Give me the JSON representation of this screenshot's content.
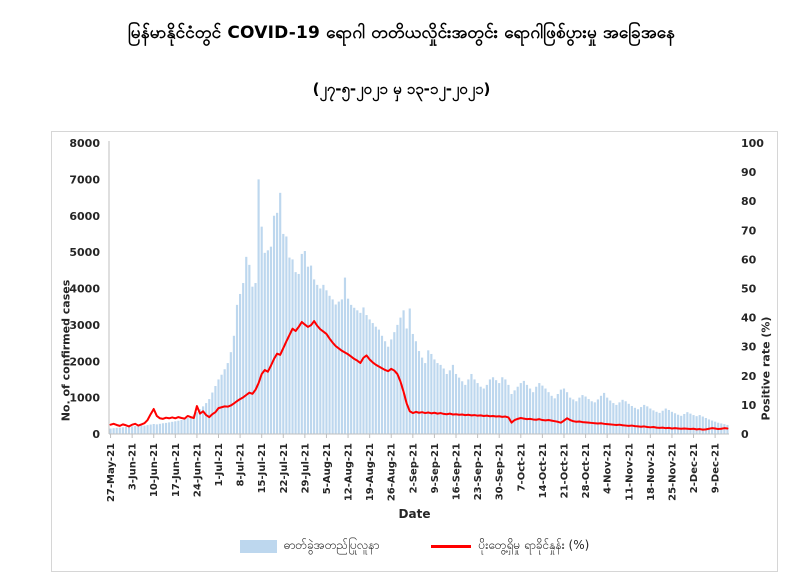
{
  "header": {
    "title": "မြန်မာနိုင်ငံတွင် COVID-19 ရောဂါ တတိယလှိုင်းအတွင်း ရောဂါဖြစ်ပွားမှု အခြေအနေ",
    "subtitle": "(၂၇-၅-၂၀၂၁ မှ ၁၃-၁၂-၂၀၂၁)"
  },
  "chart_data": {
    "type": "bar+line combo (daily bars, weekly x ticks)",
    "title": "မြန်မာနိုင်ငံတွင် COVID-19 ရောဂါ တတိယလှိုင်းအတွင်း ရောဂါဖြစ်ပွားမှု အခြေအနေ",
    "subtitle": "(၂၇-၅-၂၀၂၁ မှ ၁၃-၁၂-၂၀၂၁)",
    "xlabel": "Date",
    "ylabel_left": "No. of confirmed cases",
    "ylabel_right": "Positive rate (%)",
    "date_range": {
      "start": "27-May-21",
      "end": "13-Dec-21",
      "days": 201
    },
    "x_tick_interval_days": 7,
    "x_tick_labels": [
      "27-May-21",
      "3-Jun-21",
      "10-Jun-21",
      "17-Jun-21",
      "24-Jun-21",
      "1-Jul-21",
      "8-Jul-21",
      "15-Jul-21",
      "22-Jul-21",
      "29-Jul-21",
      "5-Aug-21",
      "12-Aug-21",
      "19-Aug-21",
      "26-Aug-21",
      "2-Sep-21",
      "9-Sep-21",
      "16-Sep-21",
      "23-Sep-21",
      "30-Sep-21",
      "7-Oct-21",
      "14-Oct-21",
      "21-Oct-21",
      "28-Oct-21",
      "4-Nov-21",
      "11-Nov-21",
      "18-Nov-21",
      "25-Nov-21",
      "2-Dec-21",
      "9-Dec-21"
    ],
    "left_axis": {
      "min": 0,
      "max": 8000,
      "ticks": [
        0,
        1000,
        2000,
        3000,
        4000,
        5000,
        6000,
        7000,
        8000
      ]
    },
    "right_axis": {
      "min": 0,
      "max": 100,
      "ticks": [
        0,
        10,
        20,
        30,
        40,
        50,
        60,
        70,
        80,
        90,
        100
      ]
    },
    "grid": false,
    "legend_position": "bottom",
    "series": [
      {
        "name": "ဓာတ်ခွဲအတည်ပြုလူနာ",
        "axis": "left",
        "type": "bar",
        "color": "#bdd7ee",
        "values": [
          150,
          160,
          170,
          175,
          185,
          195,
          205,
          210,
          220,
          230,
          235,
          230,
          245,
          260,
          275,
          265,
          280,
          295,
          305,
          320,
          335,
          350,
          365,
          385,
          410,
          440,
          480,
          530,
          600,
          680,
          760,
          850,
          960,
          1140,
          1320,
          1500,
          1630,
          1780,
          1950,
          2250,
          2700,
          3550,
          3850,
          4150,
          4870,
          4650,
          4050,
          4150,
          7000,
          5700,
          4980,
          5050,
          5150,
          6000,
          6080,
          6630,
          5500,
          5430,
          4850,
          4800,
          4450,
          4400,
          4950,
          5030,
          4600,
          4630,
          4250,
          4100,
          4000,
          4100,
          3950,
          3800,
          3700,
          3560,
          3640,
          3700,
          4300,
          3720,
          3550,
          3470,
          3400,
          3330,
          3480,
          3270,
          3150,
          3050,
          2950,
          2870,
          2700,
          2550,
          2400,
          2600,
          2800,
          3000,
          3200,
          3400,
          2900,
          3450,
          2750,
          2550,
          2280,
          2100,
          1950,
          2300,
          2200,
          2050,
          1950,
          1900,
          1800,
          1650,
          1750,
          1900,
          1650,
          1550,
          1450,
          1350,
          1500,
          1650,
          1500,
          1400,
          1300,
          1250,
          1350,
          1500,
          1560,
          1480,
          1400,
          1560,
          1500,
          1350,
          1100,
          1200,
          1300,
          1400,
          1460,
          1350,
          1250,
          1150,
          1300,
          1400,
          1330,
          1250,
          1150,
          1050,
          980,
          1100,
          1220,
          1250,
          1150,
          1000,
          950,
          900,
          1000,
          1070,
          1030,
          960,
          900,
          870,
          950,
          1050,
          1130,
          1000,
          920,
          850,
          800,
          870,
          940,
          900,
          830,
          770,
          720,
          680,
          740,
          800,
          760,
          700,
          650,
          610,
          580,
          640,
          700,
          660,
          610,
          570,
          530,
          500,
          550,
          600,
          560,
          520,
          490,
          520,
          480,
          440,
          400,
          370,
          340,
          310,
          290,
          270,
          250
        ]
      },
      {
        "name": "ပိုးတွေ့ရှိမှု ရာခိုင်နှုန်း (%)",
        "axis": "right",
        "type": "line",
        "color": "#ff0000",
        "values": [
          3.2,
          3.5,
          3.1,
          2.8,
          3.3,
          3.0,
          2.6,
          3.2,
          3.5,
          2.9,
          3.3,
          3.7,
          4.8,
          6.8,
          8.6,
          6.2,
          5.4,
          5.2,
          5.6,
          5.4,
          5.7,
          5.4,
          5.8,
          5.5,
          5.3,
          6.2,
          5.8,
          5.5,
          9.6,
          7.0,
          7.8,
          6.5,
          5.8,
          6.8,
          7.5,
          8.9,
          9.2,
          9.5,
          9.4,
          9.8,
          10.5,
          11.3,
          12.0,
          12.6,
          13.4,
          14.2,
          13.8,
          15.2,
          17.5,
          20.6,
          22.0,
          21.4,
          23.5,
          25.8,
          27.6,
          27.2,
          29.5,
          31.8,
          34.0,
          36.2,
          35.4,
          36.8,
          38.5,
          37.6,
          36.8,
          37.4,
          38.8,
          37.2,
          36.0,
          35.2,
          34.4,
          32.8,
          31.4,
          30.2,
          29.4,
          28.6,
          28.0,
          27.4,
          26.6,
          25.8,
          25.2,
          24.4,
          26.2,
          27.0,
          25.6,
          24.6,
          23.8,
          23.2,
          22.6,
          22.0,
          21.6,
          22.4,
          21.8,
          20.6,
          18.0,
          14.5,
          10.5,
          7.8,
          7.2,
          7.6,
          7.3,
          7.5,
          7.2,
          7.4,
          7.1,
          7.3,
          7.0,
          7.2,
          6.9,
          6.8,
          7.0,
          6.7,
          6.8,
          6.6,
          6.7,
          6.5,
          6.6,
          6.4,
          6.5,
          6.3,
          6.4,
          6.2,
          6.3,
          6.1,
          6.2,
          6.0,
          6.1,
          5.9,
          6.0,
          5.7,
          3.9,
          4.8,
          5.2,
          5.5,
          5.3,
          5.1,
          5.2,
          5.0,
          4.9,
          5.1,
          4.8,
          4.7,
          4.8,
          4.6,
          4.4,
          4.2,
          3.9,
          4.6,
          5.4,
          4.8,
          4.4,
          4.2,
          4.3,
          4.1,
          4.0,
          3.9,
          3.8,
          3.7,
          3.6,
          3.7,
          3.5,
          3.4,
          3.3,
          3.2,
          3.1,
          3.2,
          3.0,
          2.9,
          2.8,
          2.9,
          2.7,
          2.6,
          2.5,
          2.6,
          2.4,
          2.3,
          2.4,
          2.2,
          2.1,
          2.2,
          2.0,
          2.1,
          1.9,
          2.0,
          1.9,
          1.8,
          1.9,
          1.8,
          1.7,
          1.8,
          1.6,
          1.7,
          1.5,
          1.6,
          1.8,
          2.0,
          1.9,
          1.7,
          1.8,
          2.0,
          1.9
        ]
      }
    ],
    "colors": {
      "bar": "#bdd7ee",
      "line": "#ff0000",
      "axis": "#bfbfbf",
      "tick_text": "#262626"
    }
  },
  "axes_text": {
    "x_title": "Date",
    "y_left_title": "No. of confirmed cases",
    "y_right_title": "Positive rate (%)"
  },
  "legend": {
    "bar_label": "ဓာတ်ခွဲအတည်ပြုလူနာ",
    "line_label": "ပိုးတွေ့ရှိမှု ရာခိုင်နှုန်း (%)"
  }
}
